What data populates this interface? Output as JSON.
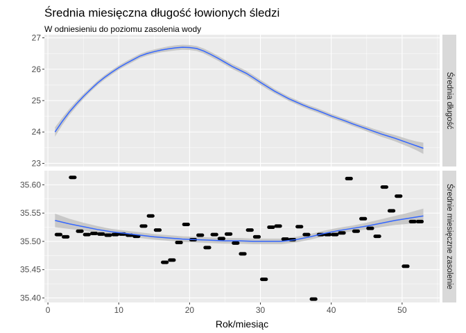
{
  "chart_data": {
    "type": "faceted",
    "title": "Średnia miesięczna długość łowionych śledzi",
    "subtitle": "W odniesieniu do poziomu zasolenia wody",
    "xlabel": "Rok/miesiąc",
    "x_range": [
      -0.5,
      55.3
    ],
    "x_ticks": [
      0,
      10,
      20,
      30,
      40,
      50
    ],
    "colors": {
      "panel_bg": "#ebebeb",
      "grid": "#ffffff",
      "strip_bg": "#d9d9d9",
      "smooth_line": "#3366ff",
      "ribbon": "#bfbfbf",
      "points": "#000000",
      "axis_text": "#4d4d4d"
    },
    "panels": [
      {
        "strip_label": "Średnia długość",
        "y_range": [
          22.9,
          27.1
        ],
        "y_ticks": [
          23,
          24,
          25,
          26,
          27
        ],
        "y_tick_labels": [
          "23",
          "24",
          "25",
          "26",
          "27"
        ],
        "smooth": {
          "x": [
            1,
            2,
            3,
            4,
            5,
            6,
            7,
            8,
            9,
            10,
            11,
            12,
            13,
            14,
            15,
            16,
            17,
            18,
            19,
            20,
            21,
            22,
            23,
            24,
            25,
            26,
            27,
            28,
            29,
            30,
            31,
            32,
            33,
            34,
            35,
            36,
            37,
            38,
            39,
            40,
            41,
            42,
            43,
            44,
            45,
            46,
            47,
            48,
            49,
            50,
            51,
            52,
            53
          ],
          "y": [
            24.0,
            24.33,
            24.63,
            24.89,
            25.13,
            25.35,
            25.56,
            25.74,
            25.9,
            26.05,
            26.18,
            26.3,
            26.42,
            26.5,
            26.56,
            26.61,
            26.65,
            26.68,
            26.7,
            26.69,
            26.66,
            26.58,
            26.47,
            26.35,
            26.22,
            26.09,
            25.98,
            25.87,
            25.73,
            25.58,
            25.44,
            25.3,
            25.18,
            25.06,
            24.96,
            24.86,
            24.77,
            24.69,
            24.6,
            24.51,
            24.43,
            24.35,
            24.26,
            24.18,
            24.1,
            24.02,
            23.94,
            23.87,
            23.8,
            23.72,
            23.64,
            23.56,
            23.48
          ],
          "se": [
            0.15,
            0.12,
            0.1,
            0.09,
            0.08,
            0.07,
            0.07,
            0.07,
            0.07,
            0.07,
            0.07,
            0.07,
            0.07,
            0.07,
            0.07,
            0.07,
            0.08,
            0.08,
            0.08,
            0.08,
            0.08,
            0.08,
            0.08,
            0.08,
            0.08,
            0.08,
            0.08,
            0.08,
            0.08,
            0.08,
            0.08,
            0.07,
            0.07,
            0.07,
            0.07,
            0.07,
            0.07,
            0.07,
            0.07,
            0.07,
            0.07,
            0.07,
            0.07,
            0.07,
            0.08,
            0.08,
            0.09,
            0.09,
            0.1,
            0.11,
            0.12,
            0.14,
            0.18
          ]
        },
        "points": []
      },
      {
        "strip_label": "Średnie miesięczne zasolenie",
        "y_range": [
          35.392,
          35.625
        ],
        "y_ticks": [
          35.4,
          35.45,
          35.5,
          35.55,
          35.6
        ],
        "y_tick_labels": [
          "35.40",
          "35.45",
          "35.50",
          "35.55",
          "35.60"
        ],
        "smooth": {
          "x": [
            1,
            3,
            5,
            7,
            9,
            11,
            13,
            15,
            17,
            19,
            21,
            23,
            25,
            27,
            29,
            31,
            33,
            35,
            37,
            39,
            41,
            43,
            45,
            47,
            49,
            51,
            53
          ],
          "y": [
            35.537,
            35.531,
            35.526,
            35.521,
            35.517,
            35.514,
            35.511,
            35.508,
            35.506,
            35.504,
            35.503,
            35.502,
            35.501,
            35.501,
            35.5,
            35.5,
            35.5,
            35.503,
            35.508,
            35.514,
            35.519,
            35.523,
            35.527,
            35.532,
            35.537,
            35.541,
            35.545
          ],
          "se": [
            0.012,
            0.009,
            0.007,
            0.006,
            0.005,
            0.005,
            0.005,
            0.005,
            0.005,
            0.005,
            0.005,
            0.005,
            0.005,
            0.005,
            0.005,
            0.005,
            0.005,
            0.005,
            0.005,
            0.005,
            0.005,
            0.005,
            0.006,
            0.007,
            0.008,
            0.01,
            0.013
          ]
        },
        "points": {
          "x": [
            1.5,
            2.5,
            3.5,
            4.5,
            5.5,
            6.5,
            7.5,
            8.5,
            9.5,
            10.5,
            11.5,
            12.5,
            13.5,
            14.5,
            15.5,
            16.5,
            17.5,
            18.5,
            19.5,
            20.5,
            21.5,
            22.5,
            23.5,
            24.5,
            25.5,
            26.5,
            27.5,
            28.5,
            29.5,
            30.5,
            31.5,
            32.5,
            33.5,
            34.5,
            35.5,
            36.5,
            37.5,
            38.5,
            39.5,
            40.5,
            41.5,
            42.5,
            43.5,
            44.5,
            45.5,
            46.5,
            47.5,
            48.5,
            49.5,
            50.5,
            51.5,
            52.5
          ],
          "y": [
            35.512,
            35.508,
            35.613,
            35.518,
            35.512,
            35.514,
            35.513,
            35.511,
            35.512,
            35.513,
            35.511,
            35.509,
            35.527,
            35.545,
            35.52,
            35.463,
            35.467,
            35.498,
            35.53,
            35.503,
            35.511,
            35.489,
            35.512,
            35.505,
            35.513,
            35.497,
            35.478,
            35.52,
            35.508,
            35.433,
            35.525,
            35.527,
            35.504,
            35.503,
            35.526,
            35.512,
            35.398,
            35.512,
            35.512,
            35.512,
            35.515,
            35.611,
            35.518,
            35.54,
            35.523,
            35.509,
            35.596,
            35.554,
            35.58,
            35.456,
            35.535,
            35.535
          ]
        }
      }
    ]
  }
}
